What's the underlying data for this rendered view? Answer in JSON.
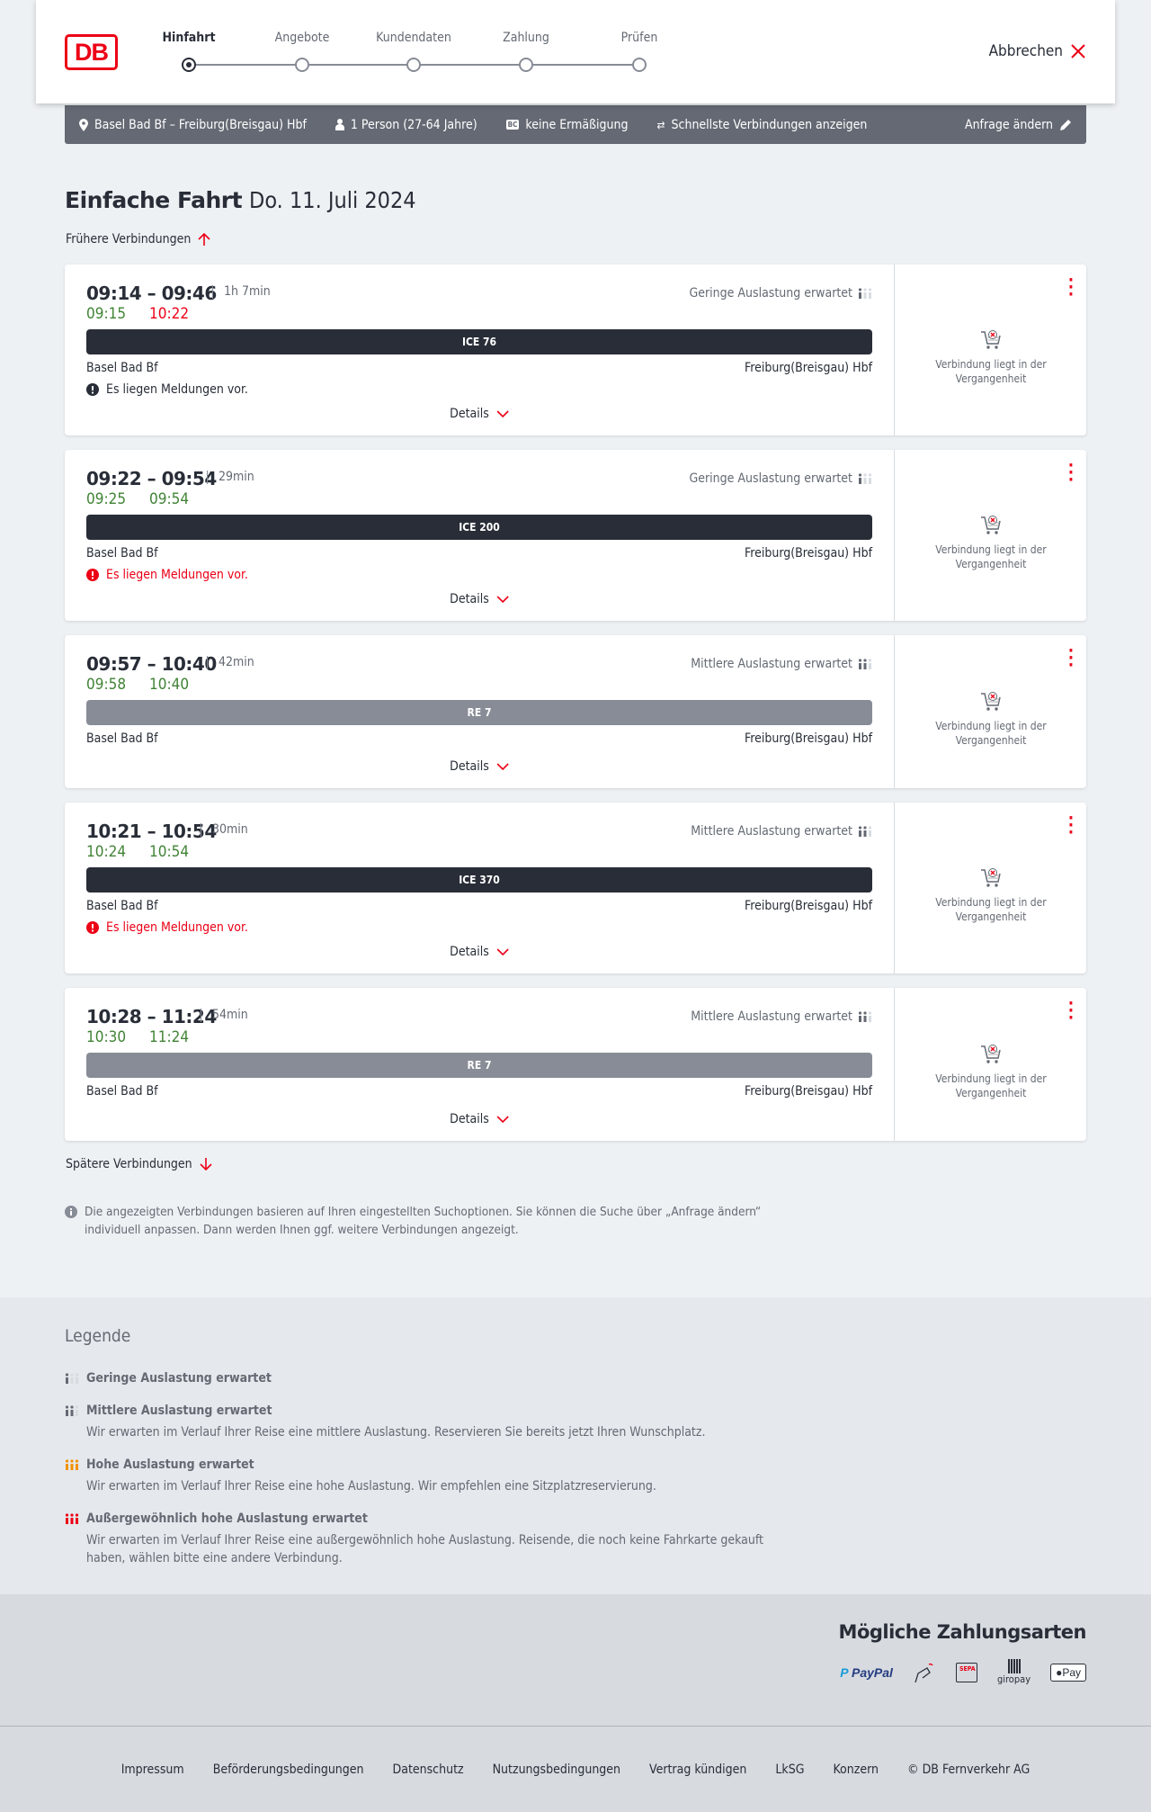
{
  "header": {
    "logo": "DB",
    "steps": [
      "Hinfahrt",
      "Angebote",
      "Kundendaten",
      "Zahlung",
      "Prüfen"
    ],
    "active_step": 0,
    "cancel_label": "Abbrechen"
  },
  "infobar": {
    "route": "Basel Bad Bf – Freiburg(Breisgau) Hbf",
    "passengers": "1 Person (27-64 Jahre)",
    "discount": "keine Ermäßigung",
    "mode": "Schnellste Verbindungen anzeigen",
    "edit_label": "Anfrage ändern"
  },
  "page": {
    "title": "Einfache Fahrt",
    "date": "Do. 11. Juli 2024",
    "earlier": "Frühere Verbindungen",
    "later": "Spätere Verbindungen",
    "note": "Die angezeigten Verbindungen basieren auf Ihren eingestellten Suchoptionen. Sie können die Suche über „Anfrage ändern“ individuell anpassen. Dann werden Ihnen ggf. weitere Verbindungen angezeigt."
  },
  "colors": {
    "on_time": "#408335",
    "delayed": "#ec0016",
    "ice_bar": "#282d37",
    "re_bar": "#878c96",
    "accent": "#ec0016"
  },
  "connections": [
    {
      "times": "09:14 – 09:46",
      "duration": "1h 7min",
      "load": "Geringe Auslastung erwartet",
      "load_level": 1,
      "rt_dep": "09:15",
      "rt_arr": "10:22",
      "dep_delayed": false,
      "arr_delayed": true,
      "train": "ICE 76",
      "train_type": "ice",
      "from": "Basel Bad Bf",
      "to": "Freiburg(Breisgau) Hbf",
      "message": "Es liegen Meldungen vor.",
      "message_severity": "info",
      "details": "Details",
      "status": "Verbindung liegt in der Vergangenheit"
    },
    {
      "times": "09:22 – 09:54",
      "duration": "29min",
      "load": "Geringe Auslastung erwartet",
      "load_level": 1,
      "rt_dep": "09:25",
      "rt_arr": "09:54",
      "dep_delayed": false,
      "arr_delayed": false,
      "train": "ICE 200",
      "train_type": "ice",
      "from": "Basel Bad Bf",
      "to": "Freiburg(Breisgau) Hbf",
      "message": "Es liegen Meldungen vor.",
      "message_severity": "warning",
      "details": "Details",
      "status": "Verbindung liegt in der Vergangenheit"
    },
    {
      "times": "09:57 – 10:40",
      "duration": "42min",
      "load": "Mittlere Auslastung erwartet",
      "load_level": 2,
      "rt_dep": "09:58",
      "rt_arr": "10:40",
      "dep_delayed": false,
      "arr_delayed": false,
      "train": "RE 7",
      "train_type": "re",
      "from": "Basel Bad Bf",
      "to": "Freiburg(Breisgau) Hbf",
      "message": null,
      "details": "Details",
      "status": "Verbindung liegt in der Vergangenheit"
    },
    {
      "times": "10:21 – 10:54",
      "duration": "30min",
      "load": "Mittlere Auslastung erwartet",
      "load_level": 2,
      "rt_dep": "10:24",
      "rt_arr": "10:54",
      "dep_delayed": false,
      "arr_delayed": false,
      "train": "ICE 370",
      "train_type": "ice",
      "from": "Basel Bad Bf",
      "to": "Freiburg(Breisgau) Hbf",
      "message": "Es liegen Meldungen vor.",
      "message_severity": "warning",
      "details": "Details",
      "status": "Verbindung liegt in der Vergangenheit"
    },
    {
      "times": "10:28 – 11:24",
      "duration": "54min",
      "load": "Mittlere Auslastung erwartet",
      "load_level": 2,
      "rt_dep": "10:30",
      "rt_arr": "11:24",
      "dep_delayed": false,
      "arr_delayed": false,
      "train": "RE 7",
      "train_type": "re",
      "from": "Basel Bad Bf",
      "to": "Freiburg(Breisgau) Hbf",
      "message": null,
      "details": "Details",
      "status": "Verbindung liegt in der Vergangenheit"
    }
  ],
  "legend": {
    "title": "Legende",
    "items": [
      {
        "title": "Geringe Auslastung erwartet",
        "desc": "",
        "level": 1
      },
      {
        "title": "Mittlere Auslastung erwartet",
        "desc": "Wir erwarten im Verlauf Ihrer Reise eine mittlere Auslastung. Reservieren Sie bereits jetzt Ihren Wunschplatz.",
        "level": 2
      },
      {
        "title": "Hohe Auslastung erwartet",
        "desc": "Wir erwarten im Verlauf Ihrer Reise eine hohe Auslastung. Wir empfehlen eine Sitzplatzreservierung.",
        "level": 3
      },
      {
        "title": "Außergewöhnlich hohe Auslastung erwartet",
        "desc": "Wir erwarten im Verlauf Ihrer Reise eine außergewöhnlich hohe Auslastung. Reisende, die noch keine Fahrkarte gekauft haben, wählen bitte eine andere Verbindung.",
        "level": 4
      }
    ]
  },
  "payment": {
    "title": "Mögliche Zahlungsarten",
    "methods": [
      "PayPal",
      "Kreditkarte",
      "SEPA",
      "giropay",
      "Pay"
    ]
  },
  "footer": {
    "links": [
      "Impressum",
      "Beförderungsbedingungen",
      "Datenschutz",
      "Nutzungsbedingungen",
      "Vertrag kündigen",
      "LkSG",
      "Konzern",
      "© DB Fernverkehr AG"
    ]
  }
}
